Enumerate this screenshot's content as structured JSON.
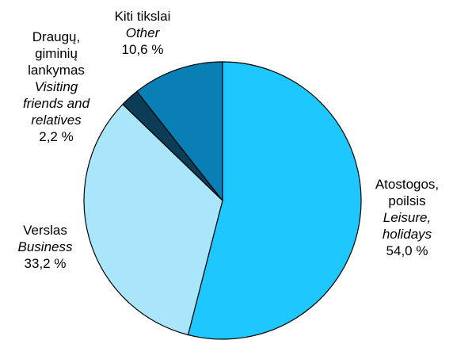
{
  "chart_data": {
    "type": "pie",
    "slices": [
      {
        "lt": [
          "Atostogos,",
          "poilsis"
        ],
        "en": [
          "Leisure,",
          "holidays"
        ],
        "value": 54.0,
        "value_label": "54,0 %",
        "color": "#1fc7ff"
      },
      {
        "lt": [
          "Verslas"
        ],
        "en": [
          "Business"
        ],
        "value": 33.2,
        "value_label": "33,2 %",
        "color": "#a9e6fb"
      },
      {
        "lt": [
          "Draugų,",
          "giminių",
          "lankymas"
        ],
        "en": [
          "Visiting",
          "friends and",
          "relatives"
        ],
        "value": 2.2,
        "value_label": "2,2 %",
        "color": "#0c3d57"
      },
      {
        "lt": [
          "Kiti tikslai"
        ],
        "en": [
          "Other"
        ],
        "value": 10.6,
        "value_label": "10,6 %",
        "color": "#0a7fb5"
      }
    ],
    "start": "12 o'clock",
    "direction": "clockwise",
    "edge_color": "#000000"
  }
}
